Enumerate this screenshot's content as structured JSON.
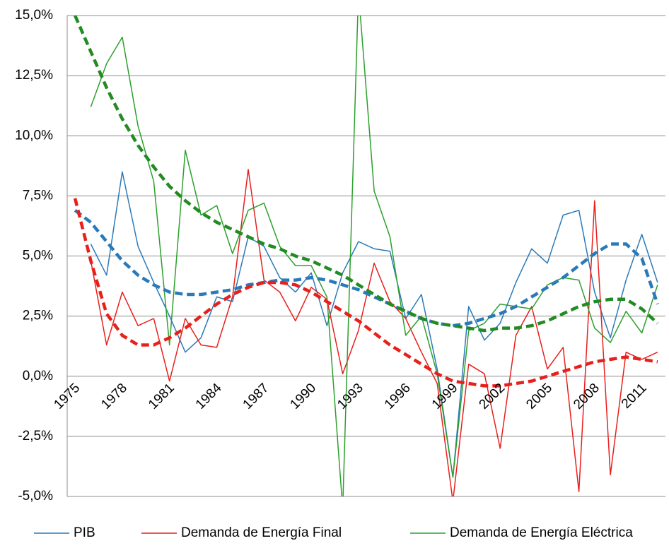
{
  "chart_data": {
    "type": "line",
    "categories": [
      "1975",
      null,
      null,
      "1978",
      null,
      null,
      "1981",
      null,
      null,
      "1984",
      null,
      null,
      "1987",
      null,
      null,
      "1990",
      null,
      null,
      "1993",
      null,
      null,
      "1996",
      null,
      null,
      "1999",
      null,
      null,
      "2002",
      null,
      null,
      "2005",
      null,
      null,
      "2008",
      null,
      null,
      "2011",
      null
    ],
    "ylim": [
      -5,
      15
    ],
    "yticks": [
      {
        "value": -5,
        "label": "-5,0%"
      },
      {
        "value": -2.5,
        "label": "-2,5%"
      },
      {
        "value": 0,
        "label": "0,0%"
      },
      {
        "value": 2.5,
        "label": "2,5%"
      },
      {
        "value": 5,
        "label": "5,0%"
      },
      {
        "value": 7.5,
        "label": "7,5%"
      },
      {
        "value": 10,
        "label": "10,0%"
      },
      {
        "value": 12.5,
        "label": "12,5%"
      },
      {
        "value": 15,
        "label": "15,0%"
      }
    ],
    "grid": true,
    "legend": "bottom",
    "series": [
      {
        "name": "PIB",
        "color": "#2a7ab9",
        "values": [
          null,
          5.5,
          4.2,
          8.5,
          5.4,
          3.9,
          2.5,
          1.0,
          1.6,
          3.3,
          3.1,
          5.8,
          5.4,
          4.1,
          3.5,
          4.3,
          2.1,
          4.3,
          5.6,
          5.3,
          5.2,
          2.4,
          3.4,
          0.3,
          -4.2,
          2.9,
          1.5,
          2.2,
          3.9,
          5.3,
          4.7,
          6.7,
          6.9,
          3.5,
          1.6,
          4.0,
          5.9,
          3.9
        ]
      },
      {
        "name": "Demanda de Energía Final",
        "color": "#e8201c",
        "values": [
          null,
          4.8,
          1.3,
          3.5,
          2.1,
          2.4,
          -0.2,
          2.4,
          1.3,
          1.2,
          3.3,
          8.6,
          4.0,
          3.5,
          2.3,
          3.7,
          3.2,
          0.1,
          1.9,
          4.7,
          3.1,
          2.4,
          1.0,
          -0.3,
          -5.2,
          0.5,
          0.1,
          -3.0,
          1.7,
          2.9,
          0.3,
          1.2,
          -4.8,
          7.3,
          -4.1,
          1.0,
          0.7,
          1.0
        ]
      },
      {
        "name": "Demanda de Energía Eléctrica",
        "color": "#2ca02c",
        "values": [
          null,
          11.2,
          13.0,
          14.1,
          10.4,
          8.1,
          1.3,
          9.4,
          6.7,
          7.1,
          5.1,
          6.9,
          7.2,
          5.4,
          4.6,
          4.6,
          3.3,
          -5.5,
          16.0,
          7.7,
          5.8,
          1.7,
          2.5,
          0.1,
          -4.2,
          1.9,
          2.2,
          3.0,
          2.9,
          2.8,
          3.8,
          4.1,
          4.0,
          2.0,
          1.4,
          2.7,
          1.8,
          3.8
        ]
      },
      {
        "color": "#2a7ab9",
        "dashed": true,
        "values": [
          6.9,
          6.4,
          5.6,
          4.8,
          4.2,
          3.8,
          3.5,
          3.4,
          3.4,
          3.5,
          3.6,
          3.8,
          3.9,
          4.0,
          4.0,
          4.1,
          4.0,
          3.8,
          3.6,
          3.3,
          3.0,
          2.7,
          2.4,
          2.2,
          2.1,
          2.2,
          2.4,
          2.6,
          2.9,
          3.3,
          3.7,
          4.1,
          4.6,
          5.1,
          5.5,
          5.5,
          4.9,
          3.0
        ]
      },
      {
        "color": "#e8201c",
        "dashed": true,
        "values": [
          7.4,
          4.8,
          2.6,
          1.7,
          1.3,
          1.3,
          1.6,
          2.0,
          2.5,
          3.0,
          3.4,
          3.7,
          3.9,
          3.9,
          3.8,
          3.5,
          3.1,
          2.7,
          2.3,
          1.8,
          1.3,
          0.9,
          0.5,
          0.1,
          -0.2,
          -0.3,
          -0.4,
          -0.4,
          -0.3,
          -0.2,
          0.0,
          0.2,
          0.4,
          0.6,
          0.7,
          0.8,
          0.7,
          0.6
        ]
      },
      {
        "color": "#228b22",
        "dashed": true,
        "values": [
          15.0,
          13.5,
          12.0,
          10.7,
          9.6,
          8.7,
          7.9,
          7.3,
          6.8,
          6.4,
          6.1,
          5.8,
          5.5,
          5.3,
          5.0,
          4.8,
          4.5,
          4.2,
          3.8,
          3.4,
          3.0,
          2.7,
          2.4,
          2.2,
          2.1,
          2.0,
          1.9,
          2.0,
          2.0,
          2.1,
          2.3,
          2.6,
          2.9,
          3.1,
          3.2,
          3.2,
          2.8,
          2.2
        ]
      }
    ]
  }
}
